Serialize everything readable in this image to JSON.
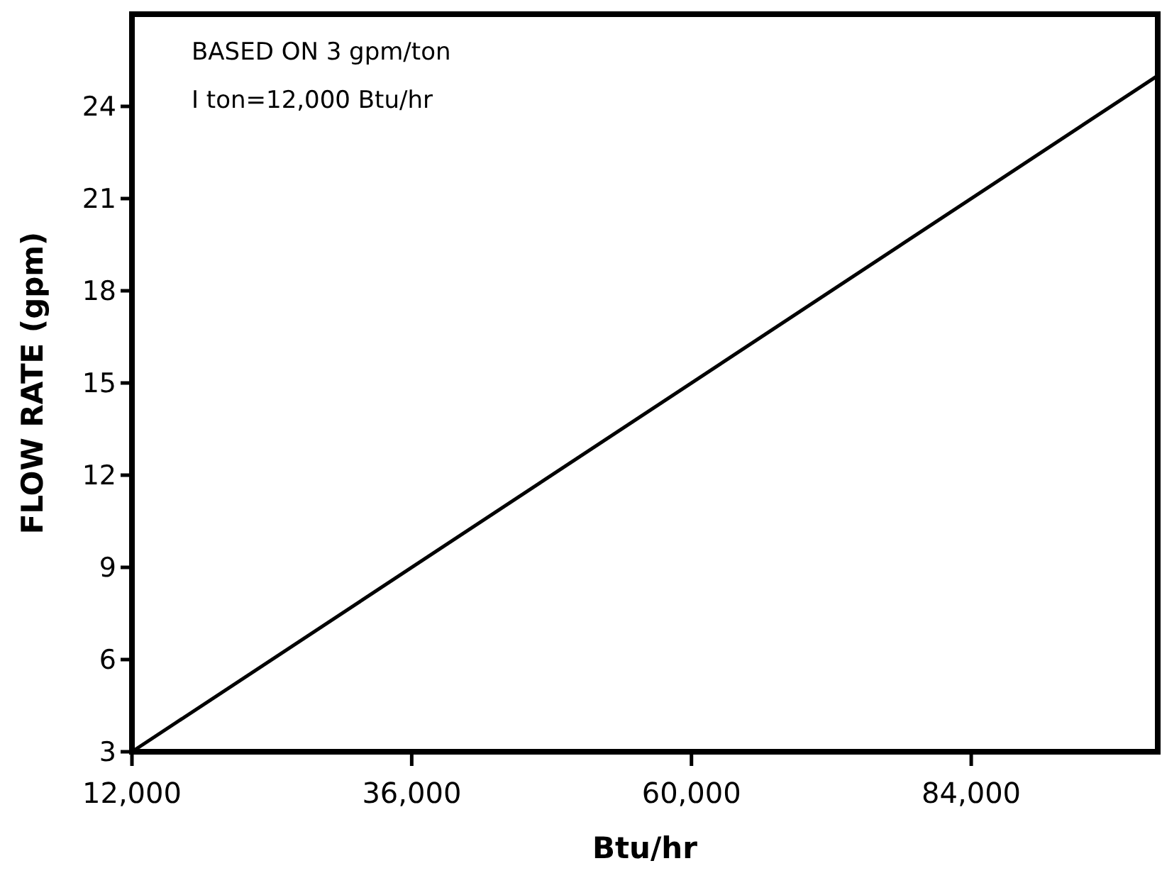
{
  "chart_data": {
    "type": "line",
    "xlabel": "Btu/hr",
    "ylabel": "FLOW RATE (gpm)",
    "annotations": [
      "BASED ON 3 gpm/ton",
      "I ton=12,000 Btu/hr"
    ],
    "x": [
      12000,
      100000
    ],
    "series": [
      {
        "color": "#000000",
        "values": [
          3,
          25
        ]
      }
    ],
    "xlim": [
      12000,
      100000
    ],
    "xticks": [
      {
        "value": 12000,
        "label": "12,000"
      },
      {
        "value": 36000,
        "label": "36,000"
      },
      {
        "value": 60000,
        "label": "60,000"
      },
      {
        "value": 84000,
        "label": "84,000"
      }
    ],
    "ylim": [
      3,
      27
    ],
    "yticks": [
      3,
      6,
      9,
      12,
      15,
      18,
      21,
      24
    ],
    "grid": false,
    "marker": "none",
    "line_style": "solid"
  }
}
